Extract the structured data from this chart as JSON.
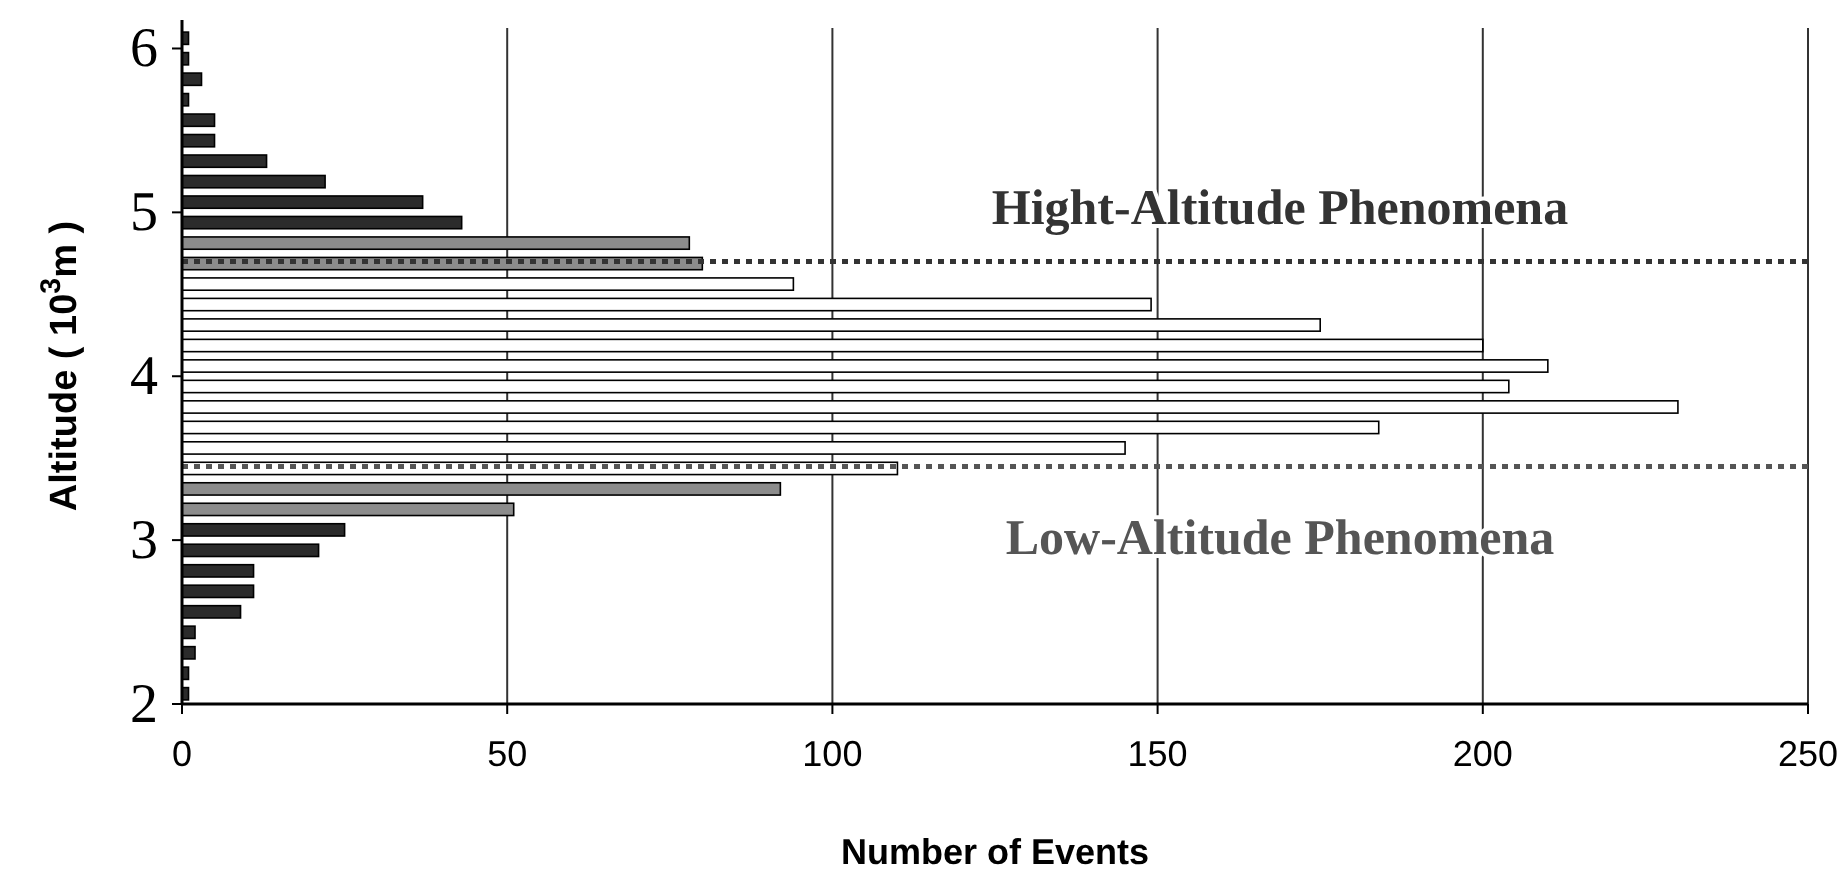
{
  "chart_data": {
    "type": "histogram",
    "orientation": "horizontal",
    "bins": [
      2,
      2.125,
      2.25,
      2.375,
      2.5,
      2.625,
      2.75,
      2.875,
      3,
      3.125,
      3.25,
      3.375,
      3.5,
      3.625,
      3.75,
      3.875,
      4,
      4.125,
      4.25,
      4.375,
      4.5,
      4.625,
      4.75,
      4.875,
      5,
      5.125,
      5.25,
      5.375,
      5.5,
      5.625,
      5.75,
      5.875,
      6,
      6.125
    ],
    "values": [
      1,
      1,
      2,
      2,
      9,
      11,
      11,
      21,
      25,
      51,
      92,
      110,
      145,
      184,
      230,
      204,
      210,
      200,
      175,
      149,
      94,
      80,
      78,
      43,
      37,
      22,
      13,
      5,
      5,
      1,
      3,
      1,
      1
    ],
    "colors": [
      "#2b2b2b",
      "#2b2b2b",
      "#2b2b2b",
      "#2b2b2b",
      "#2b2b2b",
      "#2b2b2b",
      "#2b2b2b",
      "#2b2b2b",
      "#2b2b2b",
      "#8c8c8c",
      "#8c8c8c",
      "#ffffff",
      "#ffffff",
      "#ffffff",
      "#ffffff",
      "#ffffff",
      "#ffffff",
      "#ffffff",
      "#ffffff",
      "#ffffff",
      "#ffffff",
      "#8c8c8c",
      "#8c8c8c",
      "#2b2b2b",
      "#2b2b2b",
      "#2b2b2b",
      "#2b2b2b",
      "#2b2b2b",
      "#2b2b2b",
      "#2b2b2b",
      "#2b2b2b",
      "#2b2b2b",
      "#2b2b2b"
    ],
    "xlabel": "Number of Events",
    "ylabel": "Altitude ( 10$^{3}$m )",
    "xlim": [
      0,
      250
    ],
    "xticks": [
      0,
      50,
      100,
      150,
      200,
      250
    ],
    "ylim": [
      2,
      6.125
    ],
    "yticks": [
      2,
      3,
      4,
      5,
      6
    ],
    "grid": "x",
    "ref_lines": [
      {
        "axis": "y",
        "value": 4.7,
        "label": "Hight-Altitude Phenomena",
        "color": "#333333",
        "line_style": "dotted"
      },
      {
        "axis": "y",
        "value": 3.45,
        "label": "Low-Altitude Phenomena",
        "color": "#555555",
        "line_style": "dotted"
      }
    ]
  }
}
